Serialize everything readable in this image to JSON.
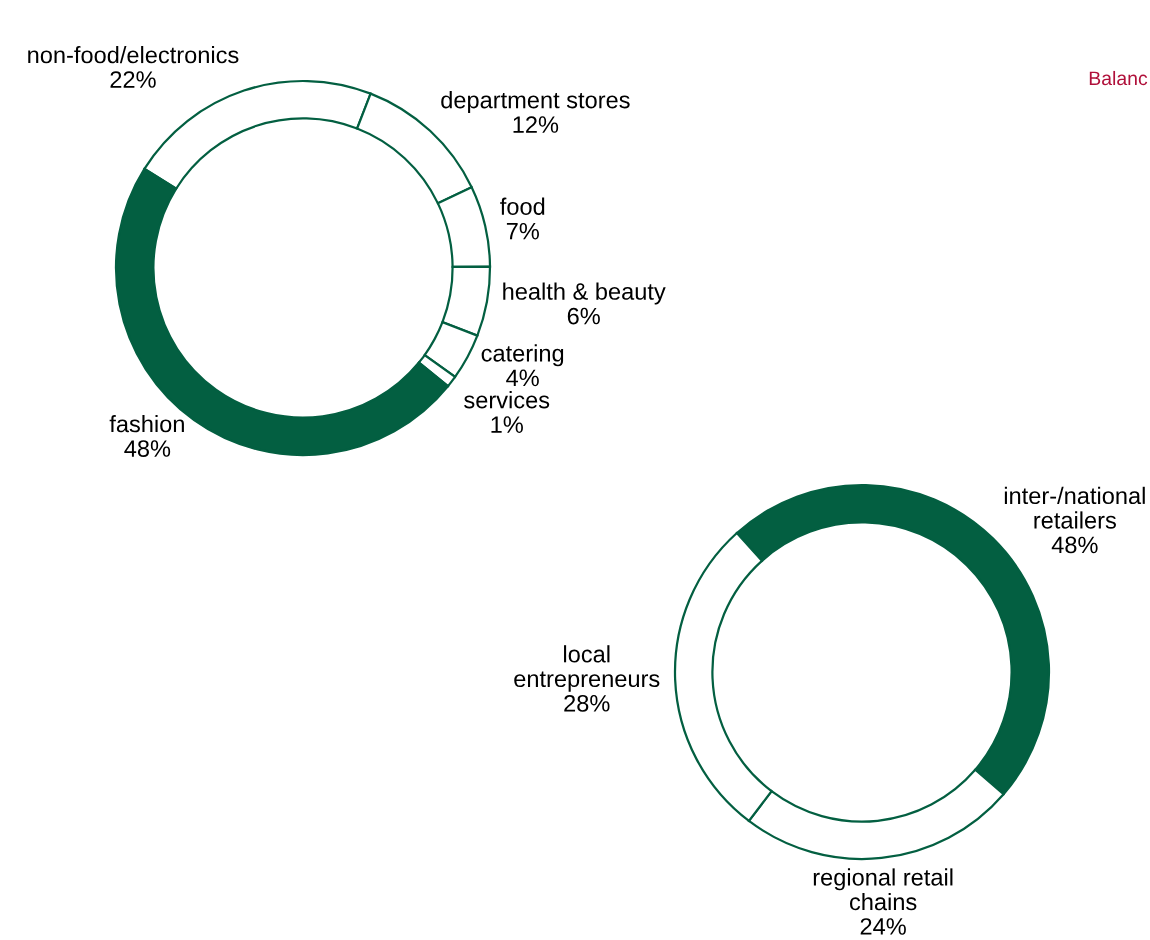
{
  "chart_data": [
    {
      "type": "donut",
      "categories": [
        "non-food/electronics",
        "department stores",
        "food",
        "health & beauty",
        "catering",
        "services",
        "fashion"
      ],
      "values": [
        22,
        12,
        7,
        6,
        4,
        1,
        48
      ],
      "value_labels": [
        "22%",
        "12%",
        "7%",
        "6%",
        "4%",
        "1%",
        "48%"
      ],
      "colors": [
        "#ffffff",
        "#ffffff",
        "#ffffff",
        "#ffffff",
        "#ffffff",
        "#ffffff",
        "#035f41"
      ],
      "annotations": [
        "Balanc"
      ]
    },
    {
      "type": "donut",
      "categories": [
        "inter-/national retailers",
        "regional retail chains",
        "local entrepreneurs"
      ],
      "values": [
        48,
        24,
        28
      ],
      "value_labels": [
        "48%",
        "24%",
        "28%"
      ],
      "colors": [
        "#035f41",
        "#ffffff",
        "#ffffff"
      ]
    }
  ]
}
